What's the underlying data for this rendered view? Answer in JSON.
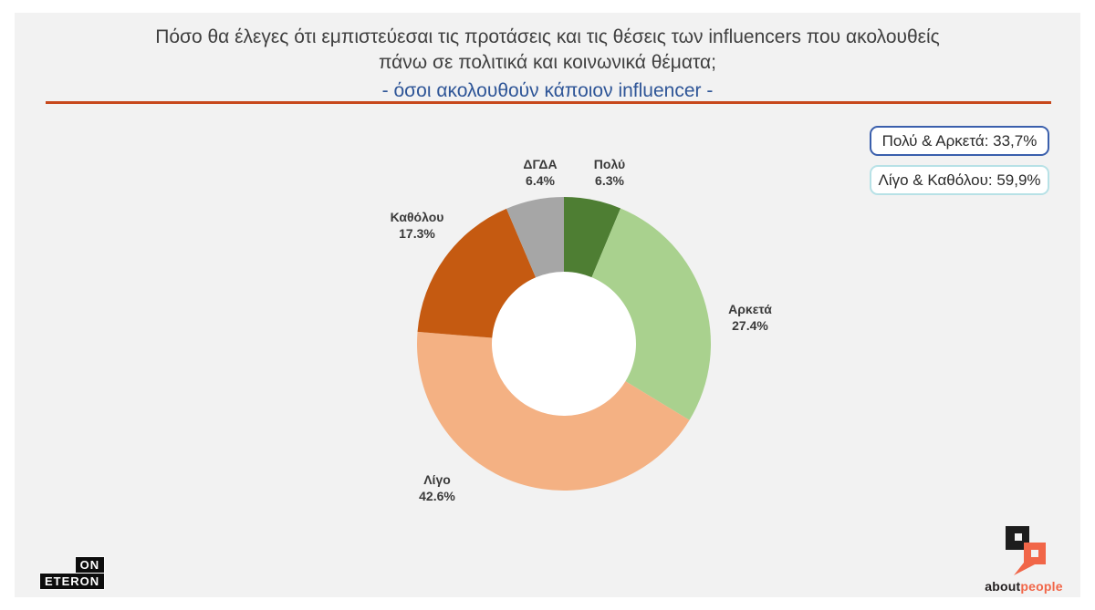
{
  "header": {
    "title_line1": "Πόσο θα έλεγες ότι εμπιστεύεσαι τις προτάσεις και τις θέσεις των influencers που ακολουθείς",
    "title_line2": "πάνω σε πολιτικά και κοινωνικά θέματα;",
    "subtitle": "- όσοι ακολουθούν κάποιον influencer -"
  },
  "summary_boxes": [
    {
      "label": "Πολύ & Αρκετά: 33,7%"
    },
    {
      "label": "Λίγο & Καθόλου: 59,9%"
    }
  ],
  "chart_data": {
    "type": "pie",
    "subtype": "donut",
    "title": "Πόσο θα έλεγες ότι εμπιστεύεσαι τις προτάσεις και τις θέσεις των influencers που ακολουθείς πάνω σε πολιτικά και κοινωνικά θέματα; - όσοι ακολουθούν κάποιον influencer -",
    "start_angle_deg": -90,
    "direction": "clockwise",
    "inner_radius_ratio": 0.49,
    "legend": "none",
    "slices": [
      {
        "label": "Πολύ",
        "value": 6.3,
        "pct_label": "6.3%",
        "color": "#4e7e33"
      },
      {
        "label": "Αρκετά",
        "value": 27.4,
        "pct_label": "27.4%",
        "color": "#a9d18e"
      },
      {
        "label": "Λίγο",
        "value": 42.6,
        "pct_label": "42.6%",
        "color": "#f4b183"
      },
      {
        "label": "Καθόλου",
        "value": 17.3,
        "pct_label": "17.3%",
        "color": "#c55a11"
      },
      {
        "label": "ΔΓΔΑ",
        "value": 6.4,
        "pct_label": "6.4%",
        "color": "#a6a6a6"
      }
    ]
  },
  "footer": {
    "eteron_logo": {
      "line1": "ON",
      "line2": "ETERON"
    },
    "aboutpeople_logo": {
      "part1": "about",
      "part2": "people"
    }
  },
  "colors": {
    "panel_bg": "#f2f2f2",
    "title_text": "#404040",
    "subtitle_text": "#2e5597",
    "divider": "#c7481c",
    "box1_border": "#3a5fac",
    "box2_border": "#b7e1e6",
    "slice_label_text": "#3a3a3a",
    "donut_hole": "#ffffff",
    "aboutpeople_orange": "#f16648"
  }
}
